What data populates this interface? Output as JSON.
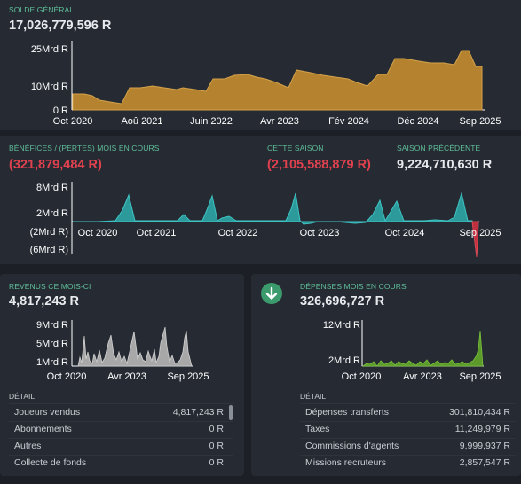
{
  "balance": {
    "caption": "SOLDE GÉNÉRAL",
    "value": "17,026,779,596 R",
    "y_ticks": [
      "25Mrd R",
      "10Mrd R",
      "0 R"
    ],
    "x_ticks": [
      "Oct 2020",
      "Aoû 2021",
      "Juin 2022",
      "Avr 2023",
      "Fév 2024",
      "Déc 2024",
      "Sep 2025"
    ],
    "colors": {
      "fill": "#b5832f",
      "line": "#d4a24a"
    }
  },
  "profit": {
    "caption_month": "BÉNÉFICES / (PERTES) MOIS EN COURS",
    "value_month": "(321,879,484 R)",
    "caption_season": "CETTE SAISON",
    "value_season": "(2,105,588,879 R)",
    "caption_prev": "SAISON PRÉCÉDENTE",
    "value_prev": "9,224,710,630 R",
    "y_ticks": [
      "8Mrd R",
      "2Mrd R",
      "(2Mrd R)",
      "(6Mrd R)"
    ],
    "x_ticks": [
      "Oct 2020",
      "Oct 2021",
      "Oct 2022",
      "Oct 2023",
      "Oct 2024",
      "Sep 2025"
    ],
    "colors": {
      "fill": "#2c9a9a",
      "line": "#3ec4c4",
      "negative": "#e0414f"
    }
  },
  "income": {
    "caption": "REVENUS CE MOIS-CI",
    "value": "4,817,243 R",
    "y_ticks": [
      "9Mrd R",
      "5Mrd R",
      "1Mrd R"
    ],
    "x_ticks": [
      "Oct 2020",
      "Avr 2023",
      "Sep 2025"
    ],
    "detail_caption": "DÉTAIL",
    "rows": [
      {
        "label": "Joueurs vendus",
        "value": "4,817,243 R"
      },
      {
        "label": "Abonnements",
        "value": "0 R"
      },
      {
        "label": "Autres",
        "value": "0 R"
      },
      {
        "label": "Collecte de fonds",
        "value": "0 R"
      }
    ],
    "colors": {
      "fill": "#a8a8a8"
    }
  },
  "expenses": {
    "caption": "DÉPENSES MOIS EN COURS",
    "value": "326,696,727 R",
    "y_ticks": [
      "12Mrd R",
      "2Mrd R"
    ],
    "x_ticks": [
      "Oct 2020",
      "Avr 2023",
      "Sep 2025"
    ],
    "detail_caption": "DÉTAIL",
    "rows": [
      {
        "label": "Dépenses transferts",
        "value": "301,810,434 R"
      },
      {
        "label": "Taxes",
        "value": "11,249,979 R"
      },
      {
        "label": "Commissions d'agents",
        "value": "9,999,937 R"
      },
      {
        "label": "Missions recruteurs",
        "value": "2,857,547 R"
      }
    ],
    "icon": "arrow-down-icon",
    "colors": {
      "fill": "#5d9a2c",
      "badge": "#3c9b6c"
    }
  }
}
